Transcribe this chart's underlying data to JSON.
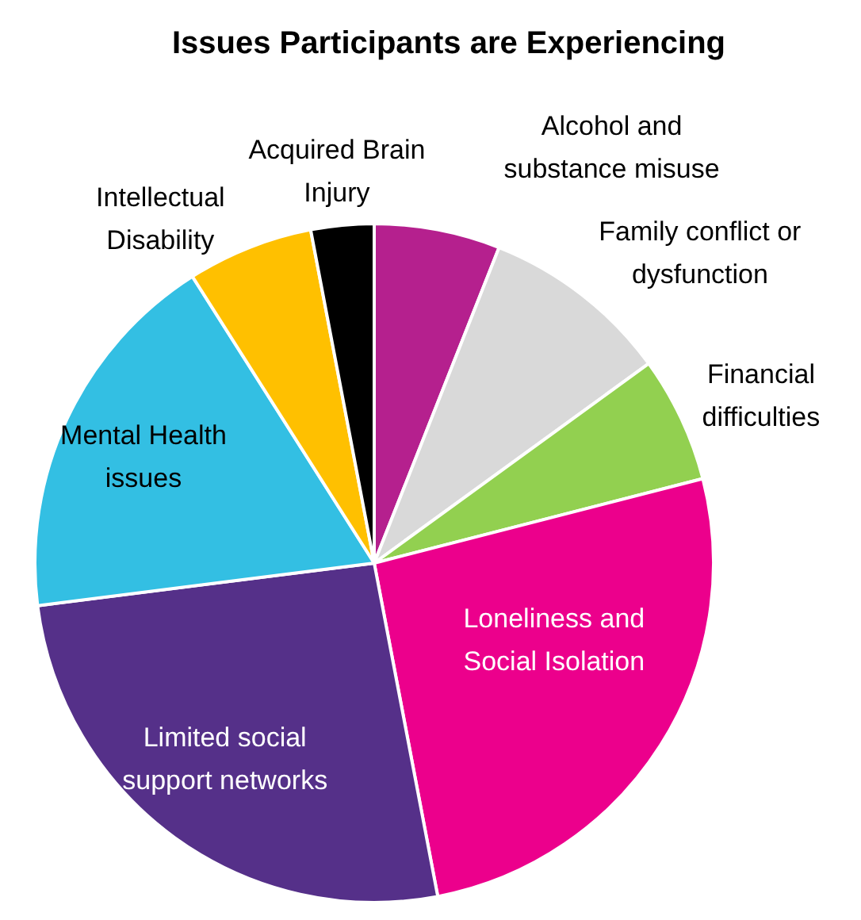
{
  "chart_data": {
    "type": "pie",
    "title": "Issues Participants are Experiencing",
    "legend": false,
    "categories": [
      "Alcohol and substance misuse",
      "Family conflict or dysfunction",
      "Financial difficulties",
      "Loneliness and Social Isolation",
      "Limited social support networks",
      "Mental Health issues",
      "Intellectual Disability",
      "Acquired Brain Injury"
    ],
    "values": [
      6,
      9,
      6,
      26,
      26,
      18,
      6,
      3
    ],
    "colors": [
      "#b5208e",
      "#d9d9d9",
      "#92d050",
      "#ec008c",
      "#553089",
      "#33bfe3",
      "#ffc000",
      "#000000"
    ]
  }
}
